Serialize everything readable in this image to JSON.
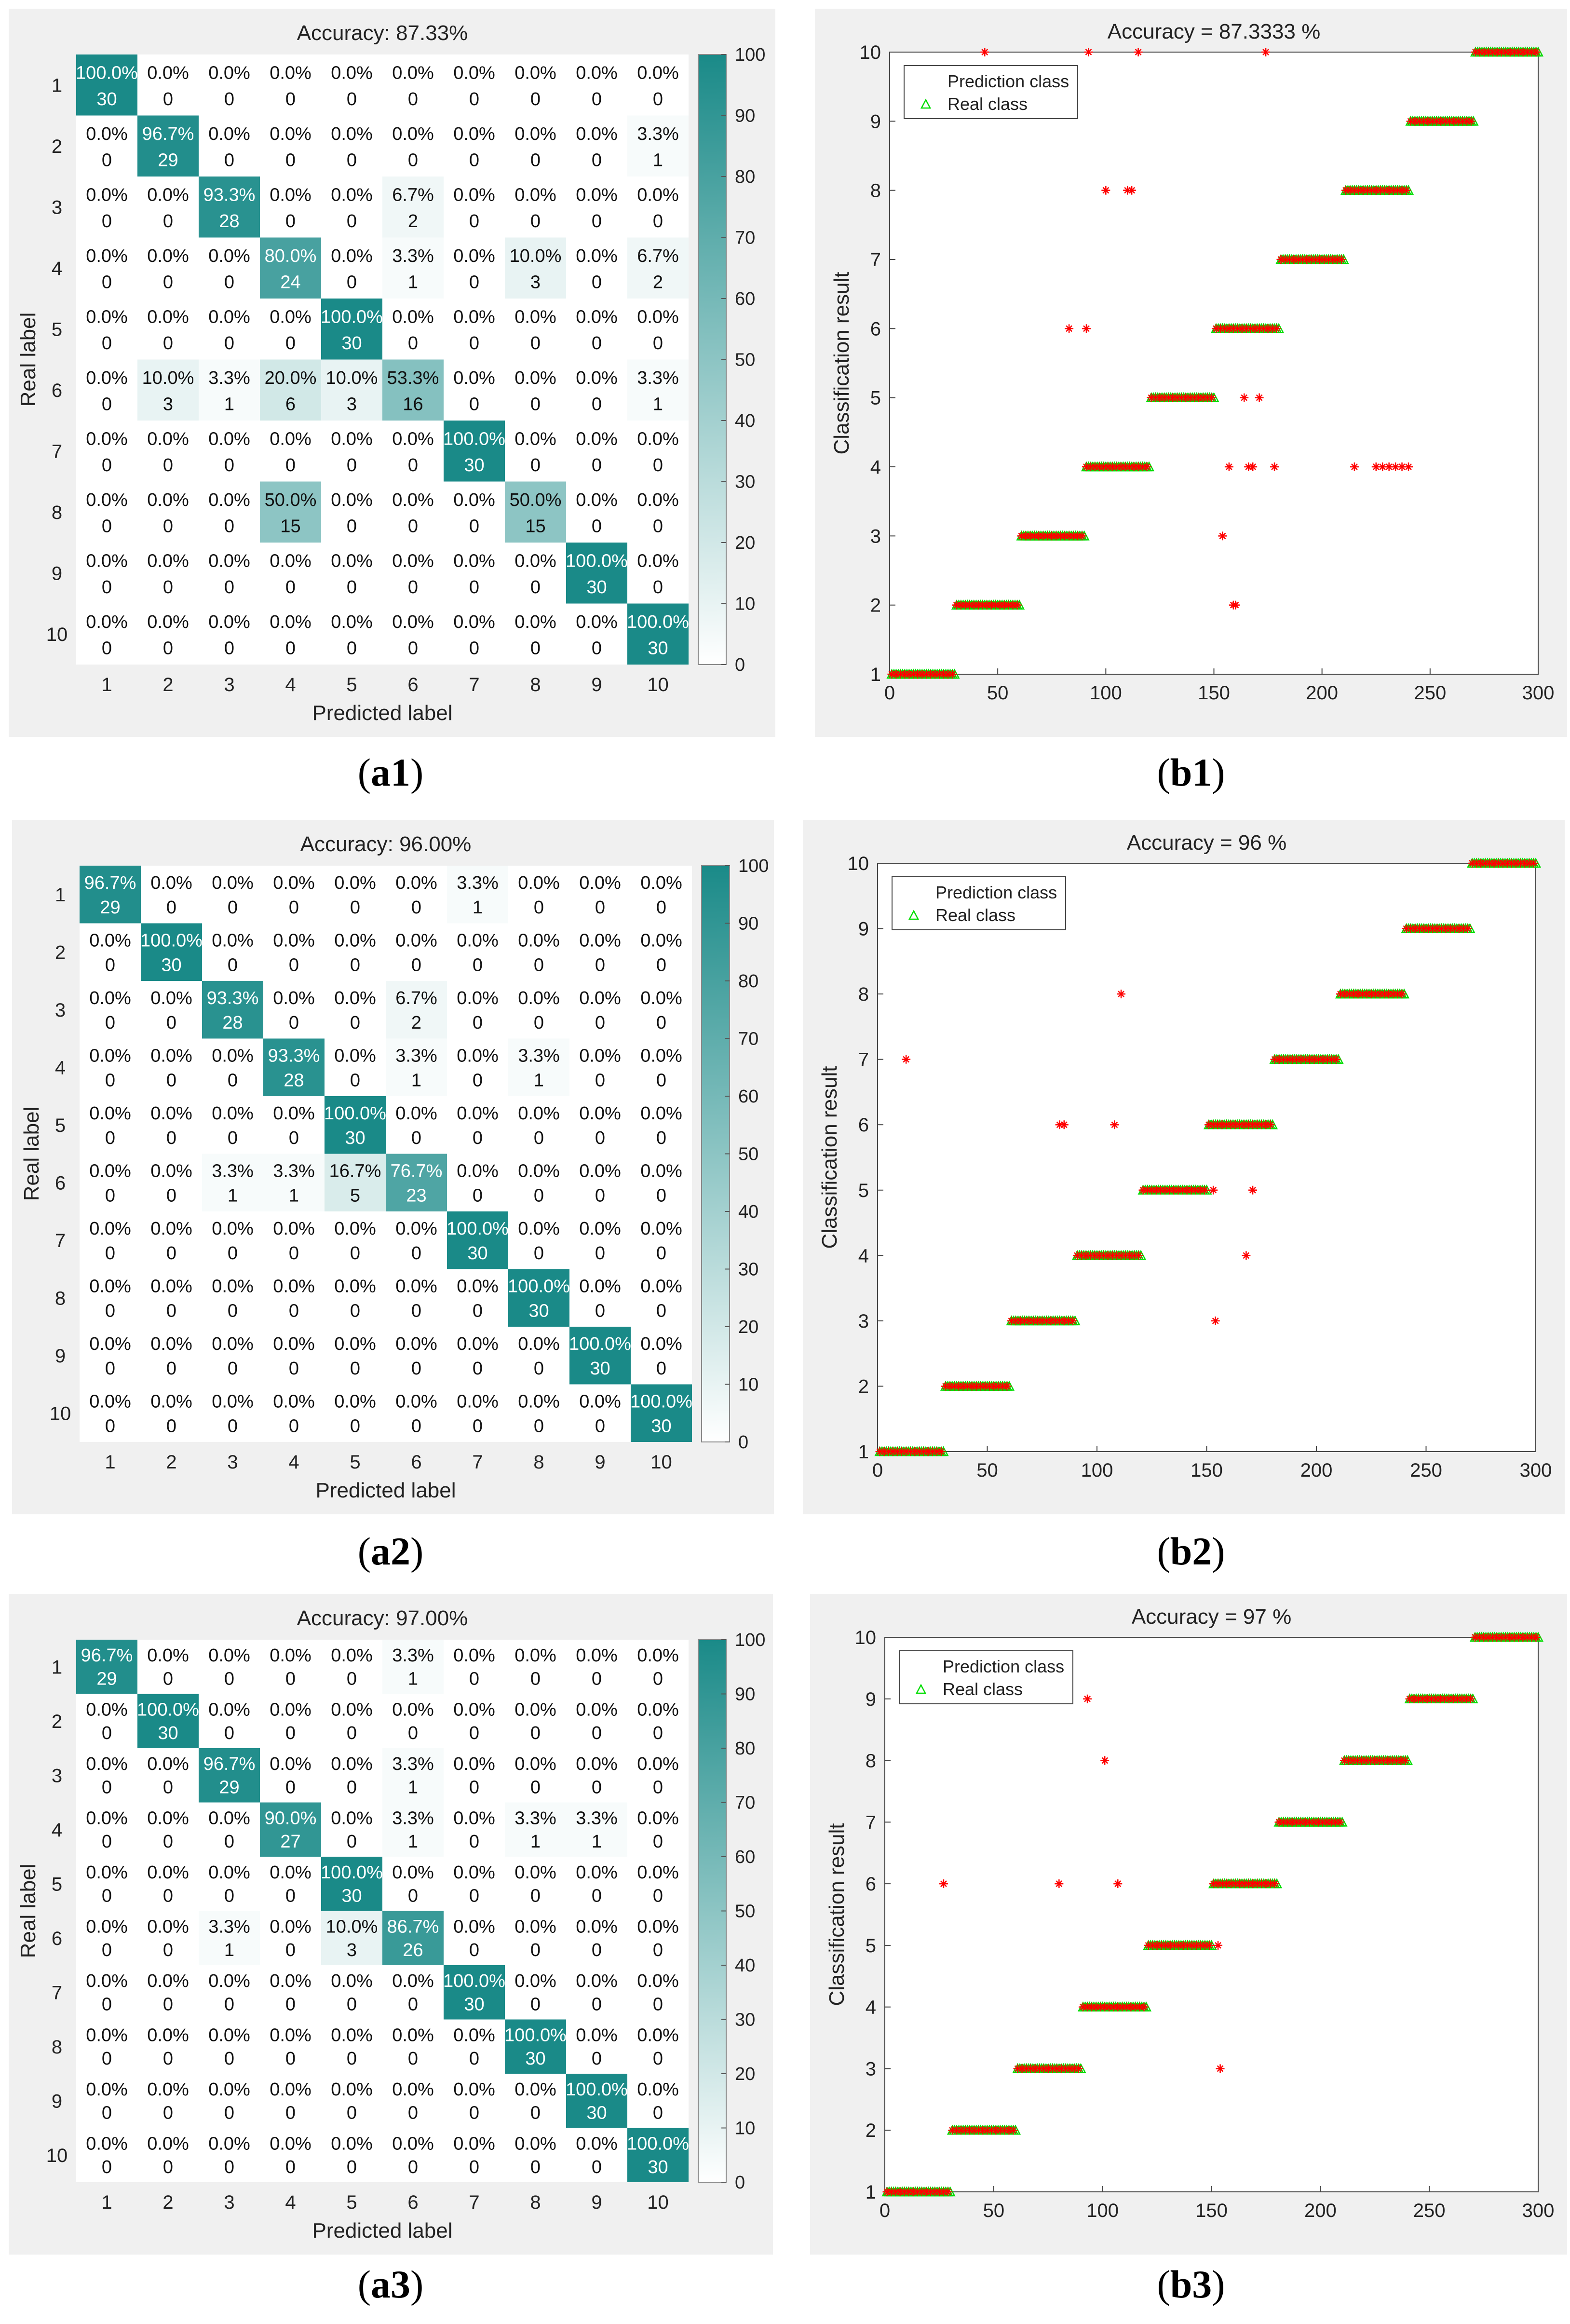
{
  "confusion_matrices": [
    {
      "title": "Accuracy: 87.33%",
      "xlabel": "Predicted label",
      "ylabel": "Real label",
      "caption_letter": "a",
      "caption_num": "1",
      "labels": [
        "1",
        "2",
        "3",
        "4",
        "5",
        "6",
        "7",
        "8",
        "9",
        "10"
      ],
      "counts": [
        [
          30,
          0,
          0,
          0,
          0,
          0,
          0,
          0,
          0,
          0
        ],
        [
          0,
          29,
          0,
          0,
          0,
          0,
          0,
          0,
          0,
          1
        ],
        [
          0,
          0,
          28,
          0,
          0,
          2,
          0,
          0,
          0,
          0
        ],
        [
          0,
          0,
          0,
          24,
          0,
          1,
          0,
          3,
          0,
          2
        ],
        [
          0,
          0,
          0,
          0,
          30,
          0,
          0,
          0,
          0,
          0
        ],
        [
          0,
          3,
          1,
          6,
          3,
          16,
          0,
          0,
          0,
          1
        ],
        [
          0,
          0,
          0,
          0,
          0,
          0,
          30,
          0,
          0,
          0
        ],
        [
          0,
          0,
          0,
          15,
          0,
          0,
          0,
          15,
          0,
          0
        ],
        [
          0,
          0,
          0,
          0,
          0,
          0,
          0,
          0,
          30,
          0
        ],
        [
          0,
          0,
          0,
          0,
          0,
          0,
          0,
          0,
          0,
          30
        ]
      ],
      "percents": [
        [
          "100.0%",
          "0.0%",
          "0.0%",
          "0.0%",
          "0.0%",
          "0.0%",
          "0.0%",
          "0.0%",
          "0.0%",
          "0.0%"
        ],
        [
          "0.0%",
          "96.7%",
          "0.0%",
          "0.0%",
          "0.0%",
          "0.0%",
          "0.0%",
          "0.0%",
          "0.0%",
          "3.3%"
        ],
        [
          "0.0%",
          "0.0%",
          "93.3%",
          "0.0%",
          "0.0%",
          "6.7%",
          "0.0%",
          "0.0%",
          "0.0%",
          "0.0%"
        ],
        [
          "0.0%",
          "0.0%",
          "0.0%",
          "80.0%",
          "0.0%",
          "3.3%",
          "0.0%",
          "10.0%",
          "0.0%",
          "6.7%"
        ],
        [
          "0.0%",
          "0.0%",
          "0.0%",
          "0.0%",
          "100.0%",
          "0.0%",
          "0.0%",
          "0.0%",
          "0.0%",
          "0.0%"
        ],
        [
          "0.0%",
          "10.0%",
          "3.3%",
          "20.0%",
          "10.0%",
          "53.3%",
          "0.0%",
          "0.0%",
          "0.0%",
          "3.3%"
        ],
        [
          "0.0%",
          "0.0%",
          "0.0%",
          "0.0%",
          "0.0%",
          "0.0%",
          "100.0%",
          "0.0%",
          "0.0%",
          "0.0%"
        ],
        [
          "0.0%",
          "0.0%",
          "0.0%",
          "50.0%",
          "0.0%",
          "0.0%",
          "0.0%",
          "50.0%",
          "0.0%",
          "0.0%"
        ],
        [
          "0.0%",
          "0.0%",
          "0.0%",
          "0.0%",
          "0.0%",
          "0.0%",
          "0.0%",
          "0.0%",
          "100.0%",
          "0.0%"
        ],
        [
          "0.0%",
          "0.0%",
          "0.0%",
          "0.0%",
          "0.0%",
          "0.0%",
          "0.0%",
          "0.0%",
          "0.0%",
          "100.0%"
        ]
      ],
      "colorbar_ticks": [
        "0",
        "10",
        "20",
        "30",
        "40",
        "50",
        "60",
        "70",
        "80",
        "90",
        "100"
      ]
    },
    {
      "title": "Accuracy: 96.00%",
      "xlabel": "Predicted label",
      "ylabel": "Real label",
      "caption_letter": "a",
      "caption_num": "2",
      "labels": [
        "1",
        "2",
        "3",
        "4",
        "5",
        "6",
        "7",
        "8",
        "9",
        "10"
      ],
      "counts": [
        [
          29,
          0,
          0,
          0,
          0,
          0,
          1,
          0,
          0,
          0
        ],
        [
          0,
          30,
          0,
          0,
          0,
          0,
          0,
          0,
          0,
          0
        ],
        [
          0,
          0,
          28,
          0,
          0,
          2,
          0,
          0,
          0,
          0
        ],
        [
          0,
          0,
          0,
          28,
          0,
          1,
          0,
          1,
          0,
          0
        ],
        [
          0,
          0,
          0,
          0,
          30,
          0,
          0,
          0,
          0,
          0
        ],
        [
          0,
          0,
          1,
          1,
          5,
          23,
          0,
          0,
          0,
          0
        ],
        [
          0,
          0,
          0,
          0,
          0,
          0,
          30,
          0,
          0,
          0
        ],
        [
          0,
          0,
          0,
          0,
          0,
          0,
          0,
          30,
          0,
          0
        ],
        [
          0,
          0,
          0,
          0,
          0,
          0,
          0,
          0,
          30,
          0
        ],
        [
          0,
          0,
          0,
          0,
          0,
          0,
          0,
          0,
          0,
          30
        ]
      ],
      "percents": [
        [
          "96.7%",
          "0.0%",
          "0.0%",
          "0.0%",
          "0.0%",
          "0.0%",
          "3.3%",
          "0.0%",
          "0.0%",
          "0.0%"
        ],
        [
          "0.0%",
          "100.0%",
          "0.0%",
          "0.0%",
          "0.0%",
          "0.0%",
          "0.0%",
          "0.0%",
          "0.0%",
          "0.0%"
        ],
        [
          "0.0%",
          "0.0%",
          "93.3%",
          "0.0%",
          "0.0%",
          "6.7%",
          "0.0%",
          "0.0%",
          "0.0%",
          "0.0%"
        ],
        [
          "0.0%",
          "0.0%",
          "0.0%",
          "93.3%",
          "0.0%",
          "3.3%",
          "0.0%",
          "3.3%",
          "0.0%",
          "0.0%"
        ],
        [
          "0.0%",
          "0.0%",
          "0.0%",
          "0.0%",
          "100.0%",
          "0.0%",
          "0.0%",
          "0.0%",
          "0.0%",
          "0.0%"
        ],
        [
          "0.0%",
          "0.0%",
          "3.3%",
          "3.3%",
          "16.7%",
          "76.7%",
          "0.0%",
          "0.0%",
          "0.0%",
          "0.0%"
        ],
        [
          "0.0%",
          "0.0%",
          "0.0%",
          "0.0%",
          "0.0%",
          "0.0%",
          "100.0%",
          "0.0%",
          "0.0%",
          "0.0%"
        ],
        [
          "0.0%",
          "0.0%",
          "0.0%",
          "0.0%",
          "0.0%",
          "0.0%",
          "0.0%",
          "100.0%",
          "0.0%",
          "0.0%"
        ],
        [
          "0.0%",
          "0.0%",
          "0.0%",
          "0.0%",
          "0.0%",
          "0.0%",
          "0.0%",
          "0.0%",
          "100.0%",
          "0.0%"
        ],
        [
          "0.0%",
          "0.0%",
          "0.0%",
          "0.0%",
          "0.0%",
          "0.0%",
          "0.0%",
          "0.0%",
          "0.0%",
          "100.0%"
        ]
      ],
      "colorbar_ticks": [
        "0",
        "10",
        "20",
        "30",
        "40",
        "50",
        "60",
        "70",
        "80",
        "90",
        "100"
      ]
    },
    {
      "title": "Accuracy: 97.00%",
      "xlabel": "Predicted label",
      "ylabel": "Real label",
      "caption_letter": "a",
      "caption_num": "3",
      "labels": [
        "1",
        "2",
        "3",
        "4",
        "5",
        "6",
        "7",
        "8",
        "9",
        "10"
      ],
      "counts": [
        [
          29,
          0,
          0,
          0,
          0,
          1,
          0,
          0,
          0,
          0
        ],
        [
          0,
          30,
          0,
          0,
          0,
          0,
          0,
          0,
          0,
          0
        ],
        [
          0,
          0,
          29,
          0,
          0,
          1,
          0,
          0,
          0,
          0
        ],
        [
          0,
          0,
          0,
          27,
          0,
          1,
          0,
          1,
          1,
          0
        ],
        [
          0,
          0,
          0,
          0,
          30,
          0,
          0,
          0,
          0,
          0
        ],
        [
          0,
          0,
          1,
          0,
          3,
          26,
          0,
          0,
          0,
          0
        ],
        [
          0,
          0,
          0,
          0,
          0,
          0,
          30,
          0,
          0,
          0
        ],
        [
          0,
          0,
          0,
          0,
          0,
          0,
          0,
          30,
          0,
          0
        ],
        [
          0,
          0,
          0,
          0,
          0,
          0,
          0,
          0,
          30,
          0
        ],
        [
          0,
          0,
          0,
          0,
          0,
          0,
          0,
          0,
          0,
          30
        ]
      ],
      "percents": [
        [
          "96.7%",
          "0.0%",
          "0.0%",
          "0.0%",
          "0.0%",
          "3.3%",
          "0.0%",
          "0.0%",
          "0.0%",
          "0.0%"
        ],
        [
          "0.0%",
          "100.0%",
          "0.0%",
          "0.0%",
          "0.0%",
          "0.0%",
          "0.0%",
          "0.0%",
          "0.0%",
          "0.0%"
        ],
        [
          "0.0%",
          "0.0%",
          "96.7%",
          "0.0%",
          "0.0%",
          "3.3%",
          "0.0%",
          "0.0%",
          "0.0%",
          "0.0%"
        ],
        [
          "0.0%",
          "0.0%",
          "0.0%",
          "90.0%",
          "0.0%",
          "3.3%",
          "0.0%",
          "3.3%",
          "3.3%",
          "0.0%"
        ],
        [
          "0.0%",
          "0.0%",
          "0.0%",
          "0.0%",
          "100.0%",
          "0.0%",
          "0.0%",
          "0.0%",
          "0.0%",
          "0.0%"
        ],
        [
          "0.0%",
          "0.0%",
          "3.3%",
          "0.0%",
          "10.0%",
          "86.7%",
          "0.0%",
          "0.0%",
          "0.0%",
          "0.0%"
        ],
        [
          "0.0%",
          "0.0%",
          "0.0%",
          "0.0%",
          "0.0%",
          "0.0%",
          "100.0%",
          "0.0%",
          "0.0%",
          "0.0%"
        ],
        [
          "0.0%",
          "0.0%",
          "0.0%",
          "0.0%",
          "0.0%",
          "0.0%",
          "0.0%",
          "100.0%",
          "0.0%",
          "0.0%"
        ],
        [
          "0.0%",
          "0.0%",
          "0.0%",
          "0.0%",
          "0.0%",
          "0.0%",
          "0.0%",
          "0.0%",
          "100.0%",
          "0.0%"
        ],
        [
          "0.0%",
          "0.0%",
          "0.0%",
          "0.0%",
          "0.0%",
          "0.0%",
          "0.0%",
          "0.0%",
          "0.0%",
          "100.0%"
        ]
      ],
      "colorbar_ticks": [
        "0",
        "10",
        "20",
        "30",
        "40",
        "50",
        "60",
        "70",
        "80",
        "90",
        "100"
      ]
    }
  ],
  "classification_plots": [
    {
      "title": "Accuracy  = 87.3333 %",
      "ylabel": "Classification result",
      "caption_letter": "b",
      "caption_num": "1",
      "legend": [
        "Prediction class",
        "Real class"
      ],
      "x_ticks": [
        "0",
        "50",
        "100",
        "150",
        "200",
        "250",
        "300"
      ],
      "y_ticks": [
        "1",
        "2",
        "3",
        "4",
        "5",
        "6",
        "7",
        "8",
        "9",
        "10"
      ],
      "errors": [
        [
          44,
          10
        ],
        [
          92,
          10
        ],
        [
          115,
          10
        ],
        [
          174,
          10
        ],
        [
          100,
          8
        ],
        [
          110,
          8
        ],
        [
          112,
          8
        ],
        [
          83,
          6
        ],
        [
          91,
          6
        ],
        [
          164,
          5
        ],
        [
          171,
          5
        ],
        [
          157,
          4
        ],
        [
          166,
          4
        ],
        [
          168,
          4
        ],
        [
          178,
          4
        ],
        [
          215,
          4
        ],
        [
          225,
          4
        ],
        [
          228,
          4
        ],
        [
          231,
          4
        ],
        [
          234,
          4
        ],
        [
          237,
          4
        ],
        [
          240,
          4
        ],
        [
          154,
          3
        ],
        [
          159,
          2
        ],
        [
          160,
          2
        ]
      ]
    },
    {
      "title": "Accuracy  = 96 %",
      "ylabel": "Classification result",
      "caption_letter": "b",
      "caption_num": "2",
      "legend": [
        "Prediction class",
        "Real class"
      ],
      "x_ticks": [
        "0",
        "50",
        "100",
        "150",
        "200",
        "250",
        "300"
      ],
      "y_ticks": [
        "1",
        "2",
        "3",
        "4",
        "5",
        "6",
        "7",
        "8",
        "9",
        "10"
      ],
      "errors": [
        [
          13,
          7
        ],
        [
          111,
          8
        ],
        [
          83,
          6
        ],
        [
          85,
          6
        ],
        [
          108,
          6
        ],
        [
          153,
          5
        ],
        [
          171,
          5
        ],
        [
          168,
          4
        ],
        [
          154,
          3
        ]
      ]
    },
    {
      "title": "Accuracy  = 97 %",
      "ylabel": "Classification result",
      "caption_letter": "b",
      "caption_num": "3",
      "legend": [
        "Prediction class",
        "Real class"
      ],
      "x_ticks": [
        "0",
        "50",
        "100",
        "150",
        "200",
        "250",
        "300"
      ],
      "y_ticks": [
        "1",
        "2",
        "3",
        "4",
        "5",
        "6",
        "7",
        "8",
        "9",
        "10"
      ],
      "errors": [
        [
          93,
          9
        ],
        [
          101,
          8
        ],
        [
          27,
          6
        ],
        [
          80,
          6
        ],
        [
          107,
          6
        ],
        [
          153,
          5
        ],
        [
          154,
          3
        ]
      ]
    }
  ],
  "chart_data": [
    {
      "type": "heatmap",
      "title": "Accuracy: 87.33%",
      "xlabel": "Predicted label",
      "ylabel": "Real label",
      "categories": [
        "1",
        "2",
        "3",
        "4",
        "5",
        "6",
        "7",
        "8",
        "9",
        "10"
      ],
      "diagonal_percent": [
        100.0,
        96.7,
        93.3,
        80.0,
        100.0,
        53.3,
        100.0,
        50.0,
        100.0,
        100.0
      ]
    },
    {
      "type": "scatter",
      "title": "Accuracy  = 87.3333 %",
      "ylabel": "Classification result",
      "xlim": [
        0,
        300
      ],
      "ylim": [
        1,
        10
      ]
    },
    {
      "type": "heatmap",
      "title": "Accuracy: 96.00%",
      "xlabel": "Predicted label",
      "ylabel": "Real label",
      "categories": [
        "1",
        "2",
        "3",
        "4",
        "5",
        "6",
        "7",
        "8",
        "9",
        "10"
      ],
      "diagonal_percent": [
        96.7,
        100.0,
        93.3,
        93.3,
        100.0,
        76.7,
        100.0,
        100.0,
        100.0,
        100.0
      ]
    },
    {
      "type": "scatter",
      "title": "Accuracy  = 96 %",
      "ylabel": "Classification result",
      "xlim": [
        0,
        300
      ],
      "ylim": [
        1,
        10
      ]
    },
    {
      "type": "heatmap",
      "title": "Accuracy: 97.00%",
      "xlabel": "Predicted label",
      "ylabel": "Real label",
      "categories": [
        "1",
        "2",
        "3",
        "4",
        "5",
        "6",
        "7",
        "8",
        "9",
        "10"
      ],
      "diagonal_percent": [
        96.7,
        100.0,
        96.7,
        90.0,
        100.0,
        86.7,
        100.0,
        100.0,
        100.0,
        100.0
      ]
    },
    {
      "type": "scatter",
      "title": "Accuracy  = 97 %",
      "ylabel": "Classification result",
      "xlim": [
        0,
        300
      ],
      "ylim": [
        1,
        10
      ]
    }
  ],
  "colors": {
    "teal": "#1a8a88",
    "panel_bg": "#f0f0f0",
    "prediction": "#ff0000",
    "real": "#00dd00"
  }
}
